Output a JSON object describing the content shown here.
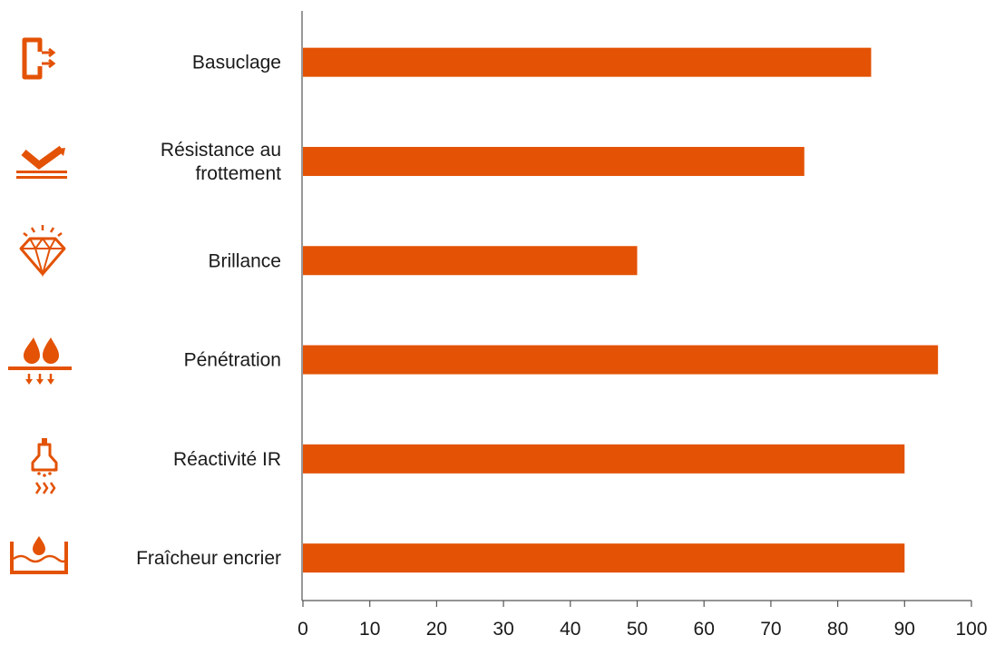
{
  "chart_data": {
    "type": "bar",
    "orientation": "horizontal",
    "categories": [
      [
        "Basuclage"
      ],
      [
        "Résistance au",
        "frottement"
      ],
      [
        "Brillance"
      ],
      [
        "Pénétration"
      ],
      [
        "Réactivité IR"
      ],
      [
        "Fraîcheur encrier"
      ]
    ],
    "icons": [
      "exit-arrows-icon",
      "rub-resistance-icon",
      "diamond-icon",
      "ink-drops-penetration-icon",
      "ir-lamp-icon",
      "ink-fountain-icon"
    ],
    "values": [
      85,
      75,
      50,
      95,
      90,
      90
    ],
    "xlim": [
      0,
      100
    ],
    "xticks": [
      "0",
      "10",
      "20",
      "30",
      "40",
      "50",
      "60",
      "70",
      "80",
      "90",
      "100"
    ],
    "grid": false,
    "bar_color": "#e35205",
    "axis_color": "#555555",
    "icon_color": "#e35205"
  }
}
